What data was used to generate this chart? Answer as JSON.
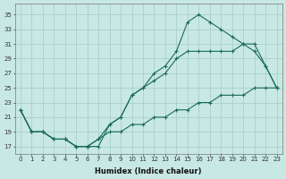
{
  "xlabel": "Humidex (Indice chaleur)",
  "bg_color": "#c8e8e4",
  "grid_color": "#aacfcb",
  "line_color": "#1a6b5a",
  "curve1_x": [
    0,
    1,
    2,
    3,
    4,
    5,
    6,
    7,
    8,
    9,
    10,
    11,
    12,
    13,
    14,
    15,
    16,
    17,
    18,
    19,
    20,
    21,
    22,
    23
  ],
  "curve1_y": [
    22,
    19,
    19,
    18,
    18,
    17,
    17,
    17,
    20,
    21,
    24,
    25,
    27,
    28,
    30,
    34,
    35,
    34,
    33,
    32,
    31,
    31,
    28,
    25
  ],
  "curve2_x": [
    0,
    1,
    2,
    3,
    4,
    5,
    6,
    7,
    8,
    9,
    10,
    11,
    12,
    13,
    14,
    15,
    16,
    17,
    18,
    19,
    20,
    21,
    22,
    23
  ],
  "curve2_y": [
    22,
    19,
    19,
    18,
    18,
    17,
    17,
    18,
    20,
    21,
    24,
    25,
    26,
    27,
    29,
    30,
    30,
    30,
    30,
    30,
    31,
    30,
    28,
    25
  ],
  "curve3_x": [
    0,
    1,
    2,
    3,
    4,
    5,
    6,
    7,
    8,
    9,
    10,
    11,
    12,
    13,
    14,
    15,
    16,
    17,
    18,
    19,
    20,
    21,
    22,
    23
  ],
  "curve3_y": [
    22,
    19,
    19,
    18,
    18,
    17,
    17,
    18,
    19,
    19,
    20,
    20,
    21,
    21,
    22,
    22,
    23,
    23,
    24,
    24,
    24,
    25,
    25,
    25
  ],
  "xlim": [
    -0.5,
    23.5
  ],
  "ylim": [
    16,
    36.5
  ],
  "yticks": [
    17,
    19,
    21,
    23,
    25,
    27,
    29,
    31,
    33,
    35
  ],
  "xticks": [
    0,
    1,
    2,
    3,
    4,
    5,
    6,
    7,
    8,
    9,
    10,
    11,
    12,
    13,
    14,
    15,
    16,
    17,
    18,
    19,
    20,
    21,
    22,
    23
  ],
  "tick_fontsize": 5,
  "xlabel_fontsize": 6
}
